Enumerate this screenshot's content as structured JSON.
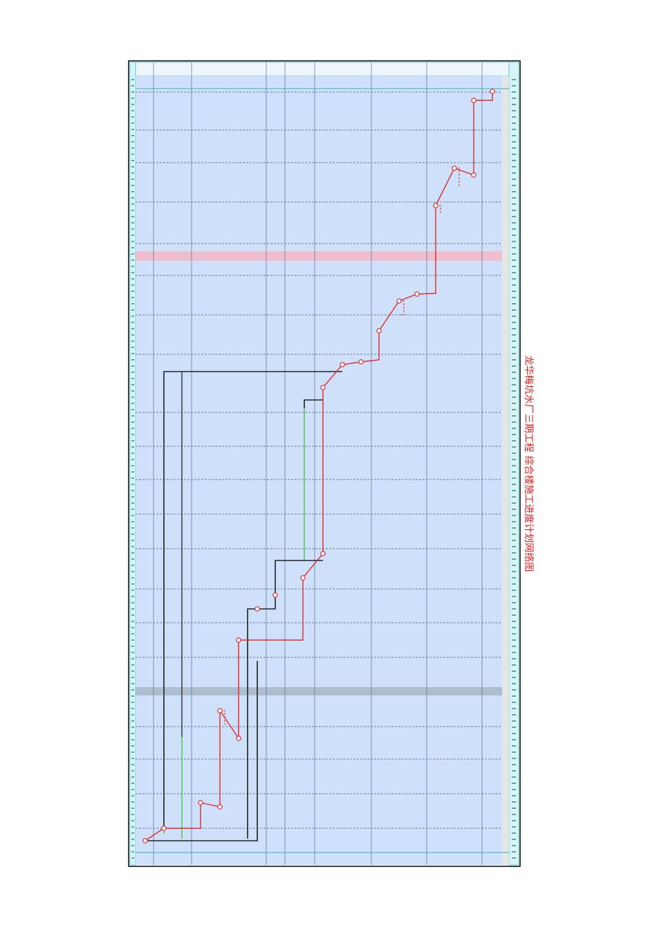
{
  "title": "龙华梅坑水厂三期工程 综合楼施工进度计划网络图"
}
